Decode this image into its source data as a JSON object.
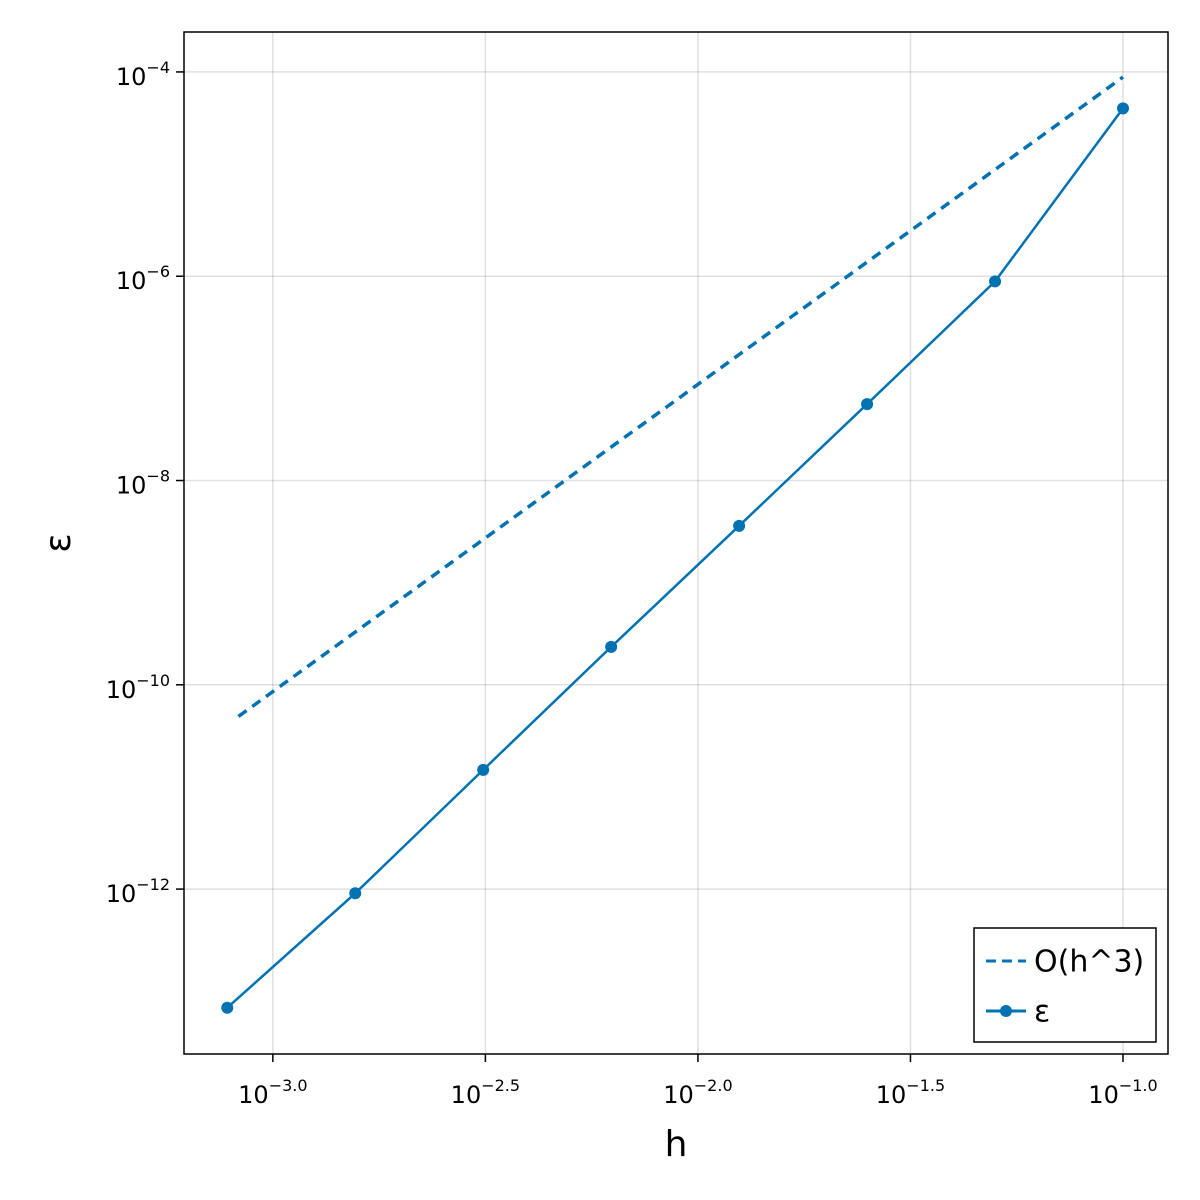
{
  "chart_data": {
    "type": "line",
    "xlabel": "h",
    "ylabel": "ε",
    "xscale": "log",
    "yscale": "log",
    "grid": true,
    "legend_position": "bottom-right",
    "xlim": [
      0.000618,
      0.1276
    ],
    "ylim": [
      2.43e-14,
      0.000246
    ],
    "xticks": [
      {
        "value": 0.001,
        "label": "10−3.0"
      },
      {
        "value": 0.0031622776601683794,
        "label": "10−2.5"
      },
      {
        "value": 0.01,
        "label": "10−2.0"
      },
      {
        "value": 0.03162277660168379,
        "label": "10−1.5"
      },
      {
        "value": 0.1,
        "label": "10−1.0"
      }
    ],
    "yticks": [
      {
        "value": 0.0001,
        "label": "10−4"
      },
      {
        "value": 1e-06,
        "label": "10−6"
      },
      {
        "value": 1e-08,
        "label": "10−8"
      },
      {
        "value": 1e-10,
        "label": "10−10"
      },
      {
        "value": 1e-12,
        "label": "10−12"
      }
    ],
    "series": [
      {
        "name": "O(h^3)",
        "color": "#0072b2",
        "line_style": "dashed",
        "marker": "none",
        "x": [
          0.00083,
          0.1
        ],
        "values": [
          4.9e-11,
          8.9e-05
        ]
      },
      {
        "name": "ε",
        "color": "#0072b2",
        "line_style": "solid",
        "marker": "circle",
        "x": [
          0.00078125,
          0.0015625,
          0.003125,
          0.00625,
          0.0125,
          0.025,
          0.05,
          0.1
        ],
        "values": [
          6.9e-14,
          9.1e-13,
          1.47e-11,
          2.35e-10,
          3.6e-09,
          5.6e-08,
          8.9e-07,
          4.4e-05
        ]
      }
    ]
  }
}
